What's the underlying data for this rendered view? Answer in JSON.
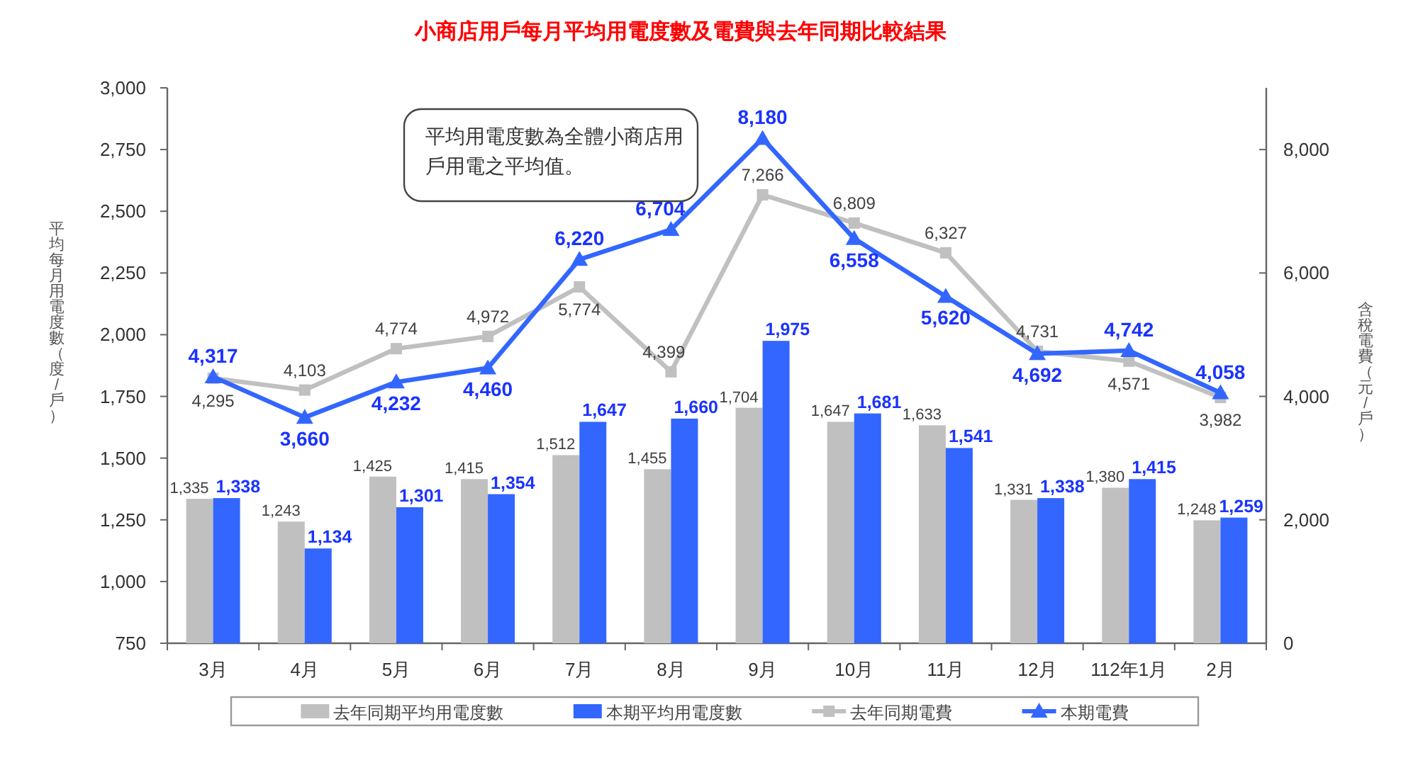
{
  "chart_data": {
    "type": "bar",
    "title": "小商店用戶每月平均用電度數及電費與去年同期比較結果",
    "ylabel": "平均每月用電度數（度/戶）",
    "y2label": "含稅電費（元/戶）",
    "annotations": [
      "平均用電度數為全體小商店用戶用電之平均值。"
    ],
    "categories": [
      "3月",
      "4月",
      "5月",
      "6月",
      "7月",
      "8月",
      "9月",
      "10月",
      "11月",
      "12月",
      "112年1月",
      "2月"
    ],
    "series": [
      {
        "name": "去年同期平均用電度數",
        "color": "#c0c0c0",
        "values": [
          1335,
          1243,
          1425,
          1415,
          1512,
          1455,
          1704,
          1647,
          1633,
          1331,
          1380,
          1248
        ],
        "value_labels": [
          "1,335",
          "1,243",
          "1,425",
          "1,415",
          "1,512",
          "1,455",
          "1,704",
          "1,647",
          "1,633",
          "1,331",
          "1,380",
          "1,248"
        ]
      },
      {
        "name": "本期平均用電度數",
        "color": "#3366ff",
        "values": [
          1338,
          1134,
          1301,
          1354,
          1647,
          1660,
          1975,
          1681,
          1541,
          1338,
          1415,
          1259
        ],
        "value_labels": [
          "1,338",
          "1,134",
          "1,301",
          "1,354",
          "1,647",
          "1,660",
          "1,975",
          "1,681",
          "1,541",
          "1,338",
          "1,415",
          "1,259"
        ]
      },
      {
        "name": "去年同期電費",
        "type": "line",
        "axis": "y2",
        "color": "#c0c0c0",
        "marker": "square",
        "values": [
          4295,
          4103,
          4774,
          4972,
          5774,
          4399,
          7266,
          6809,
          6327,
          4731,
          4571,
          3982
        ],
        "value_labels": [
          "4,295",
          "4,103",
          "4,774",
          "4,972",
          "5,774",
          "4,399",
          "7,266",
          "6,809",
          "6,327",
          "4,731",
          "4,571",
          "3,982"
        ]
      },
      {
        "name": "本期電費",
        "type": "line",
        "axis": "y2",
        "color": "#3366ff",
        "marker": "triangle",
        "values": [
          4317,
          3660,
          4232,
          4460,
          6220,
          6704,
          8180,
          6558,
          5620,
          4692,
          4742,
          4058
        ],
        "value_labels": [
          "4,317",
          "3,660",
          "4,232",
          "4,460",
          "6,220",
          "6,704",
          "8,180",
          "6,558",
          "5,620",
          "4,692",
          "4,742",
          "4,058"
        ]
      }
    ],
    "ylim": [
      750,
      3000
    ],
    "yticks": [
      750,
      {
        "value": 1000,
        "label": "1,000"
      },
      {
        "value": 1250,
        "label": "1,250"
      },
      {
        "value": 1500,
        "label": "1,500"
      },
      {
        "value": 1750,
        "label": "1,750"
      },
      {
        "value": 2000,
        "label": "2,000"
      },
      {
        "value": 2250,
        "label": "2,250"
      },
      {
        "value": 2500,
        "label": "2,500"
      },
      {
        "value": 2750,
        "label": "2,750"
      },
      {
        "value": 3000,
        "label": "3,000"
      }
    ],
    "y2lim": [
      0,
      9000
    ],
    "y2ticks": [
      0,
      {
        "value": 2000,
        "label": "2,000"
      },
      {
        "value": 4000,
        "label": "4,000"
      },
      {
        "value": 6000,
        "label": "6,000"
      },
      {
        "value": 8000,
        "label": "8,000"
      }
    ],
    "legend": "bottom"
  }
}
